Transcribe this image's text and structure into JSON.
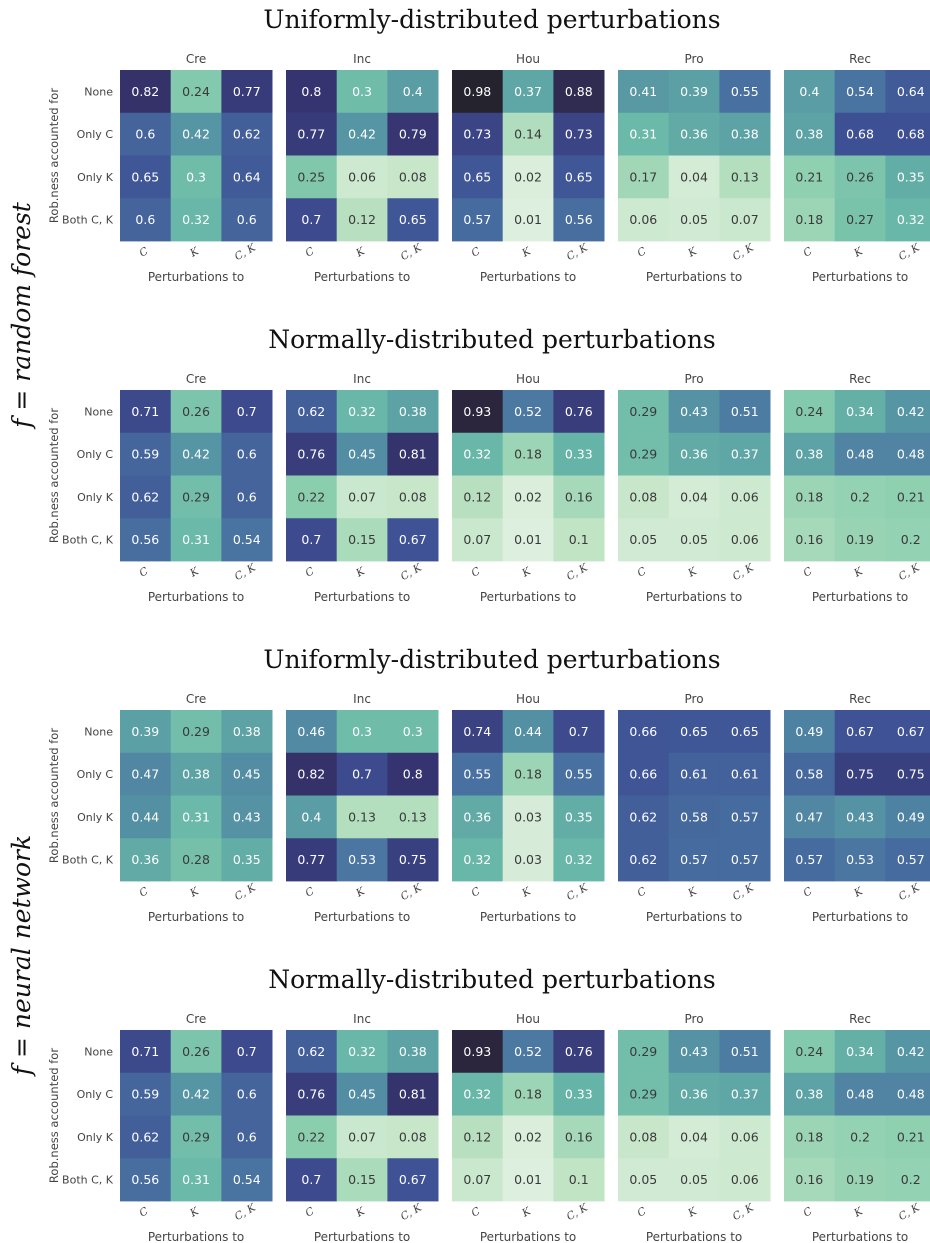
{
  "figure": {
    "side_labels": [
      "f = random forest",
      "f = neural network"
    ],
    "panel_labels": {
      "ylabel": "Rob.ness accounted for",
      "xlabel": "Perturbations to",
      "row_labels": [
        "None",
        "Only C",
        "Only K",
        "Both C, K"
      ],
      "col_labels": [
        "C",
        "K",
        "C, K"
      ]
    },
    "datasets": [
      "Cre",
      "Inc",
      "Hou",
      "Pro",
      "Rec"
    ]
  },
  "chart_data": [
    {
      "type": "heatmap",
      "model": "random forest",
      "title": "Uniformly-distributed perturbations",
      "panels": [
        {
          "dataset": "Cre",
          "values": [
            [
              0.82,
              0.24,
              0.77
            ],
            [
              0.6,
              0.42,
              0.62
            ],
            [
              0.65,
              0.3,
              0.64
            ],
            [
              0.6,
              0.32,
              0.6
            ]
          ]
        },
        {
          "dataset": "Inc",
          "values": [
            [
              0.8,
              0.3,
              0.4
            ],
            [
              0.77,
              0.42,
              0.79
            ],
            [
              0.25,
              0.06,
              0.08
            ],
            [
              0.7,
              0.12,
              0.65
            ]
          ]
        },
        {
          "dataset": "Hou",
          "values": [
            [
              0.98,
              0.37,
              0.88
            ],
            [
              0.73,
              0.14,
              0.73
            ],
            [
              0.65,
              0.02,
              0.65
            ],
            [
              0.57,
              0.01,
              0.56
            ]
          ]
        },
        {
          "dataset": "Pro",
          "values": [
            [
              0.41,
              0.39,
              0.55
            ],
            [
              0.31,
              0.36,
              0.38
            ],
            [
              0.17,
              0.04,
              0.13
            ],
            [
              0.06,
              0.05,
              0.07
            ]
          ]
        },
        {
          "dataset": "Rec",
          "values": [
            [
              0.4,
              0.54,
              0.64
            ],
            [
              0.38,
              0.68,
              0.68
            ],
            [
              0.21,
              0.26,
              0.35
            ],
            [
              0.18,
              0.27,
              0.32
            ]
          ]
        }
      ]
    },
    {
      "type": "heatmap",
      "model": "random forest",
      "title": "Normally-distributed perturbations",
      "panels": [
        {
          "dataset": "Cre",
          "values": [
            [
              0.71,
              0.26,
              0.7
            ],
            [
              0.59,
              0.42,
              0.6
            ],
            [
              0.62,
              0.29,
              0.6
            ],
            [
              0.56,
              0.31,
              0.54
            ]
          ]
        },
        {
          "dataset": "Inc",
          "values": [
            [
              0.62,
              0.32,
              0.38
            ],
            [
              0.76,
              0.45,
              0.81
            ],
            [
              0.22,
              0.07,
              0.08
            ],
            [
              0.7,
              0.15,
              0.67
            ]
          ]
        },
        {
          "dataset": "Hou",
          "values": [
            [
              0.93,
              0.52,
              0.76
            ],
            [
              0.32,
              0.18,
              0.33
            ],
            [
              0.12,
              0.02,
              0.16
            ],
            [
              0.07,
              0.01,
              0.1
            ]
          ]
        },
        {
          "dataset": "Pro",
          "values": [
            [
              0.29,
              0.43,
              0.51
            ],
            [
              0.29,
              0.36,
              0.37
            ],
            [
              0.08,
              0.04,
              0.06
            ],
            [
              0.05,
              0.05,
              0.06
            ]
          ]
        },
        {
          "dataset": "Rec",
          "values": [
            [
              0.24,
              0.34,
              0.42
            ],
            [
              0.38,
              0.48,
              0.48
            ],
            [
              0.18,
              0.2,
              0.21
            ],
            [
              0.16,
              0.19,
              0.2
            ]
          ]
        }
      ]
    },
    {
      "type": "heatmap",
      "model": "neural network",
      "title": "Uniformly-distributed perturbations",
      "panels": [
        {
          "dataset": "Cre",
          "values": [
            [
              0.39,
              0.29,
              0.38
            ],
            [
              0.47,
              0.38,
              0.45
            ],
            [
              0.44,
              0.31,
              0.43
            ],
            [
              0.36,
              0.28,
              0.35
            ]
          ]
        },
        {
          "dataset": "Inc",
          "values": [
            [
              0.46,
              0.3,
              0.3
            ],
            [
              0.82,
              0.7,
              0.8
            ],
            [
              0.4,
              0.13,
              0.13
            ],
            [
              0.77,
              0.53,
              0.75
            ]
          ]
        },
        {
          "dataset": "Hou",
          "values": [
            [
              0.74,
              0.44,
              0.7
            ],
            [
              0.55,
              0.18,
              0.55
            ],
            [
              0.36,
              0.03,
              0.35
            ],
            [
              0.32,
              0.03,
              0.32
            ]
          ]
        },
        {
          "dataset": "Pro",
          "values": [
            [
              0.66,
              0.65,
              0.65
            ],
            [
              0.66,
              0.61,
              0.61
            ],
            [
              0.62,
              0.58,
              0.57
            ],
            [
              0.62,
              0.57,
              0.57
            ]
          ]
        },
        {
          "dataset": "Rec",
          "values": [
            [
              0.49,
              0.67,
              0.67
            ],
            [
              0.58,
              0.75,
              0.75
            ],
            [
              0.47,
              0.43,
              0.49
            ],
            [
              0.57,
              0.53,
              0.57
            ]
          ]
        }
      ]
    },
    {
      "type": "heatmap",
      "model": "neural network",
      "title": "Normally-distributed perturbations",
      "panels": [
        {
          "dataset": "Cre",
          "values": [
            [
              0.71,
              0.26,
              0.7
            ],
            [
              0.59,
              0.42,
              0.6
            ],
            [
              0.62,
              0.29,
              0.6
            ],
            [
              0.56,
              0.31,
              0.54
            ]
          ]
        },
        {
          "dataset": "Inc",
          "values": [
            [
              0.62,
              0.32,
              0.38
            ],
            [
              0.76,
              0.45,
              0.81
            ],
            [
              0.22,
              0.07,
              0.08
            ],
            [
              0.7,
              0.15,
              0.67
            ]
          ]
        },
        {
          "dataset": "Hou",
          "values": [
            [
              0.93,
              0.52,
              0.76
            ],
            [
              0.32,
              0.18,
              0.33
            ],
            [
              0.12,
              0.02,
              0.16
            ],
            [
              0.07,
              0.01,
              0.1
            ]
          ]
        },
        {
          "dataset": "Pro",
          "values": [
            [
              0.29,
              0.43,
              0.51
            ],
            [
              0.29,
              0.36,
              0.37
            ],
            [
              0.08,
              0.04,
              0.06
            ],
            [
              0.05,
              0.05,
              0.06
            ]
          ]
        },
        {
          "dataset": "Rec",
          "values": [
            [
              0.24,
              0.34,
              0.42
            ],
            [
              0.38,
              0.48,
              0.48
            ],
            [
              0.18,
              0.2,
              0.21
            ],
            [
              0.16,
              0.19,
              0.2
            ]
          ]
        }
      ]
    }
  ]
}
